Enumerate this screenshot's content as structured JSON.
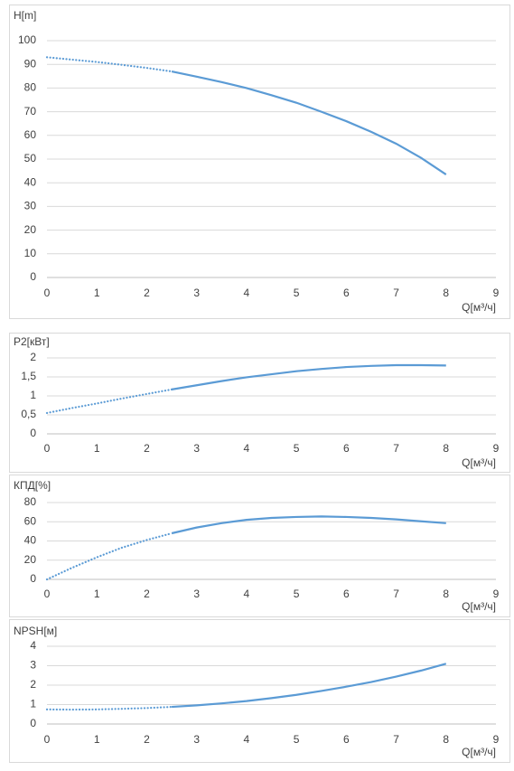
{
  "chart_data": [
    {
      "type": "line",
      "title": "H[m]",
      "x_label": "Q[м³/ч]",
      "x": [
        0,
        0.5,
        1,
        1.5,
        2,
        2.5,
        3,
        3.5,
        4,
        4.5,
        5,
        5.5,
        6,
        6.5,
        7,
        7.5,
        8
      ],
      "series": [
        {
          "color": "#5b9bd5",
          "style": "dotted",
          "values": [
            93,
            92,
            91,
            89.8,
            88.5,
            87,
            null,
            null,
            null,
            null,
            null,
            null,
            null,
            null,
            null,
            null,
            null
          ]
        },
        {
          "color": "#5b9bd5",
          "style": "solid",
          "values": [
            null,
            null,
            null,
            null,
            null,
            87,
            84.8,
            82.5,
            80,
            77,
            73.8,
            70,
            66,
            61.5,
            56.5,
            50.5,
            43.5
          ]
        }
      ],
      "xlim": [
        0,
        9
      ],
      "xticks": [
        0,
        1,
        2,
        3,
        4,
        5,
        6,
        7,
        8,
        9
      ],
      "ylim": [
        0,
        100
      ],
      "yticks": [
        0,
        10,
        20,
        30,
        40,
        50,
        60,
        70,
        80,
        90,
        100
      ],
      "grid": true
    },
    {
      "type": "line",
      "title": "P2[кВт]",
      "x_label": "Q[м³/ч]",
      "x": [
        0,
        0.5,
        1,
        1.5,
        2,
        2.5,
        3,
        3.5,
        4,
        4.5,
        5,
        5.5,
        6,
        6.5,
        7,
        7.5,
        8
      ],
      "series": [
        {
          "color": "#5b9bd5",
          "style": "dotted",
          "values": [
            0.55,
            0.68,
            0.8,
            0.93,
            1.05,
            1.17,
            null,
            null,
            null,
            null,
            null,
            null,
            null,
            null,
            null,
            null,
            null
          ]
        },
        {
          "color": "#5b9bd5",
          "style": "solid",
          "values": [
            null,
            null,
            null,
            null,
            null,
            1.17,
            1.28,
            1.39,
            1.49,
            1.57,
            1.65,
            1.71,
            1.76,
            1.79,
            1.81,
            1.81,
            1.8
          ]
        }
      ],
      "xlim": [
        0,
        9
      ],
      "xticks": [
        0,
        1,
        2,
        3,
        4,
        5,
        6,
        7,
        8,
        9
      ],
      "ylim": [
        0,
        2
      ],
      "yticks": [
        0,
        {
          "value": 0.5,
          "label": "0,5"
        },
        1,
        {
          "value": 1.5,
          "label": "1,5"
        },
        2
      ],
      "grid": true
    },
    {
      "type": "line",
      "title": "КПД[%]",
      "x_label": "Q[м³/ч]",
      "x": [
        0,
        0.5,
        1,
        1.5,
        2,
        2.5,
        3,
        3.5,
        4,
        4.5,
        5,
        5.5,
        6,
        6.5,
        7,
        7.5,
        8
      ],
      "series": [
        {
          "color": "#5b9bd5",
          "style": "dotted",
          "values": [
            0,
            12,
            23,
            33,
            41,
            48,
            null,
            null,
            null,
            null,
            null,
            null,
            null,
            null,
            null,
            null,
            null
          ]
        },
        {
          "color": "#5b9bd5",
          "style": "solid",
          "values": [
            null,
            null,
            null,
            null,
            null,
            48,
            54,
            58.5,
            62,
            64,
            65,
            65.5,
            65,
            64,
            62.5,
            60.5,
            58.5
          ]
        }
      ],
      "xlim": [
        0,
        9
      ],
      "xticks": [
        0,
        1,
        2,
        3,
        4,
        5,
        6,
        7,
        8,
        9
      ],
      "ylim": [
        0,
        80
      ],
      "yticks": [
        0,
        20,
        40,
        60,
        80
      ],
      "grid": true
    },
    {
      "type": "line",
      "title": "NPSH[м]",
      "x_label": "Q[м³/ч]",
      "x": [
        0,
        0.5,
        1,
        1.5,
        2,
        2.5,
        3,
        3.5,
        4,
        4.5,
        5,
        5.5,
        6,
        6.5,
        7,
        7.5,
        8
      ],
      "series": [
        {
          "color": "#5b9bd5",
          "style": "dotted",
          "values": [
            0.75,
            0.74,
            0.75,
            0.78,
            0.82,
            0.88,
            null,
            null,
            null,
            null,
            null,
            null,
            null,
            null,
            null,
            null,
            null
          ]
        },
        {
          "color": "#5b9bd5",
          "style": "solid",
          "values": [
            null,
            null,
            null,
            null,
            null,
            0.88,
            0.96,
            1.06,
            1.18,
            1.33,
            1.5,
            1.7,
            1.92,
            2.16,
            2.44,
            2.75,
            3.1
          ]
        }
      ],
      "xlim": [
        0,
        9
      ],
      "xticks": [
        0,
        1,
        2,
        3,
        4,
        5,
        6,
        7,
        8,
        9
      ],
      "ylim": [
        0,
        4
      ],
      "yticks": [
        0,
        1,
        2,
        3,
        4
      ],
      "grid": true
    }
  ]
}
